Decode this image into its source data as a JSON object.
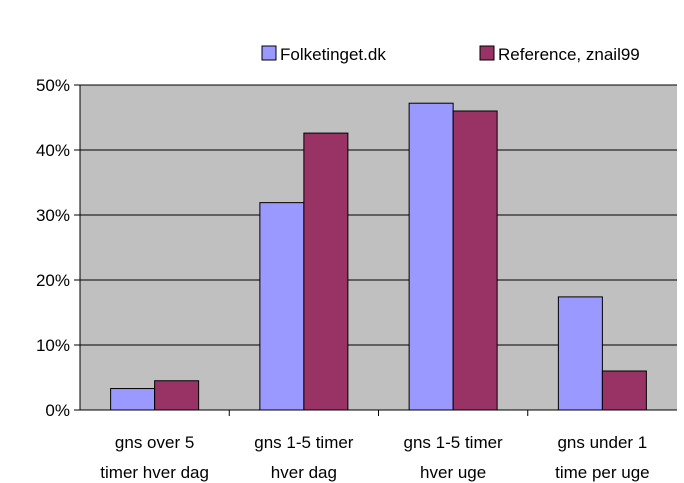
{
  "chart_data": {
    "type": "bar",
    "categories": [
      [
        "gns over 5",
        "timer hver dag"
      ],
      [
        "gns 1-5 timer",
        "hver dag"
      ],
      [
        "gns 1-5 timer",
        "hver uge"
      ],
      [
        "gns under 1",
        "time per uge"
      ]
    ],
    "series": [
      {
        "name": "Folketinget.dk",
        "color": "#9999ff",
        "values": [
          3.3,
          31.9,
          47.2,
          17.4
        ]
      },
      {
        "name": "Reference, znail99",
        "color": "#993366",
        "values": [
          4.5,
          42.6,
          46.0,
          6.0
        ]
      }
    ],
    "yticks": [
      "0%",
      "10%",
      "20%",
      "30%",
      "40%",
      "50%"
    ],
    "ylim": [
      0,
      50
    ],
    "grid": true,
    "plot_background": "#c0c0c0",
    "legend_position": "top"
  }
}
